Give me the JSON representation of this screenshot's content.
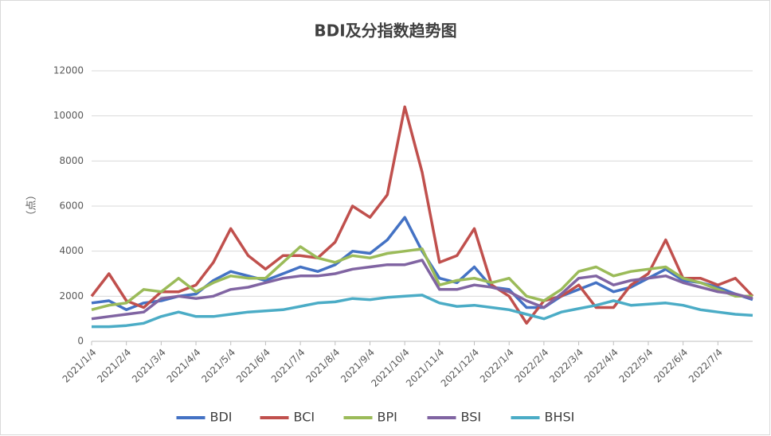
{
  "chart_data": {
    "type": "line",
    "title": "BDI及分指数趋势图",
    "y_label": "（点）",
    "categories": [
      "2021/1/4",
      null,
      "2021/2/4",
      null,
      "2021/3/4",
      null,
      "2021/4/4",
      null,
      "2021/5/4",
      null,
      "2021/6/4",
      null,
      "2021/7/4",
      null,
      "2021/8/4",
      null,
      "2021/9/4",
      null,
      "2021/10/4",
      null,
      "2021/11/4",
      null,
      "2021/12/4",
      null,
      "2022/1/4",
      null,
      "2022/2/4",
      null,
      "2022/3/4",
      null,
      "2022/4/4",
      null,
      "2022/5/4",
      null,
      "2022/6/4",
      null,
      "2022/7/4",
      null,
      null
    ],
    "series": [
      {
        "name": "BDI",
        "color": "#4472c4",
        "values": [
          1700,
          1800,
          1400,
          1700,
          1800,
          2000,
          2100,
          2700,
          3100,
          2900,
          2700,
          3000,
          3300,
          3100,
          3400,
          4000,
          3900,
          4500,
          5500,
          4000,
          2800,
          2600,
          3300,
          2400,
          2300,
          1500,
          1500,
          2000,
          2300,
          2600,
          2200,
          2400,
          2800,
          3200,
          2700,
          2600,
          2400,
          2100,
          1850
        ]
      },
      {
        "name": "BCI",
        "color": "#c0504d",
        "values": [
          2000,
          3000,
          1800,
          1500,
          2200,
          2200,
          2500,
          3500,
          5000,
          3800,
          3200,
          3800,
          3800,
          3700,
          4400,
          6000,
          5500,
          6500,
          10400,
          7500,
          3500,
          3800,
          5000,
          2500,
          2000,
          800,
          1800,
          2000,
          2500,
          1500,
          1500,
          2500,
          3000,
          4500,
          2800,
          2800,
          2500,
          2800,
          2000
        ]
      },
      {
        "name": "BPI",
        "color": "#9bbb59",
        "values": [
          1400,
          1600,
          1700,
          2300,
          2200,
          2800,
          2200,
          2600,
          2900,
          2800,
          2800,
          3500,
          4200,
          3700,
          3500,
          3800,
          3700,
          3900,
          4000,
          4100,
          2500,
          2700,
          2800,
          2600,
          2800,
          2000,
          1800,
          2300,
          3100,
          3300,
          2900,
          3100,
          3200,
          3300,
          2800,
          2600,
          2300,
          2000,
          2000
        ]
      },
      {
        "name": "BSI",
        "color": "#8064a2",
        "values": [
          1000,
          1100,
          1200,
          1300,
          1900,
          2000,
          1900,
          2000,
          2300,
          2400,
          2600,
          2800,
          2900,
          2900,
          3000,
          3200,
          3300,
          3400,
          3400,
          3600,
          2300,
          2300,
          2500,
          2400,
          2200,
          1800,
          1500,
          2100,
          2800,
          2900,
          2500,
          2700,
          2800,
          2900,
          2600,
          2400,
          2200,
          2100,
          1900
        ]
      },
      {
        "name": "BHSI",
        "color": "#4bacc6",
        "values": [
          650,
          650,
          700,
          800,
          1100,
          1300,
          1100,
          1100,
          1200,
          1300,
          1350,
          1400,
          1550,
          1700,
          1750,
          1900,
          1850,
          1950,
          2000,
          2050,
          1700,
          1550,
          1600,
          1500,
          1400,
          1200,
          1000,
          1300,
          1450,
          1600,
          1800,
          1600,
          1650,
          1700,
          1600,
          1400,
          1300,
          1200,
          1150
        ]
      }
    ],
    "ylim": [
      0,
      12000
    ],
    "yticks": [
      0,
      2000,
      4000,
      6000,
      8000,
      10000,
      12000
    ],
    "grid": true,
    "legend": "bottom"
  }
}
